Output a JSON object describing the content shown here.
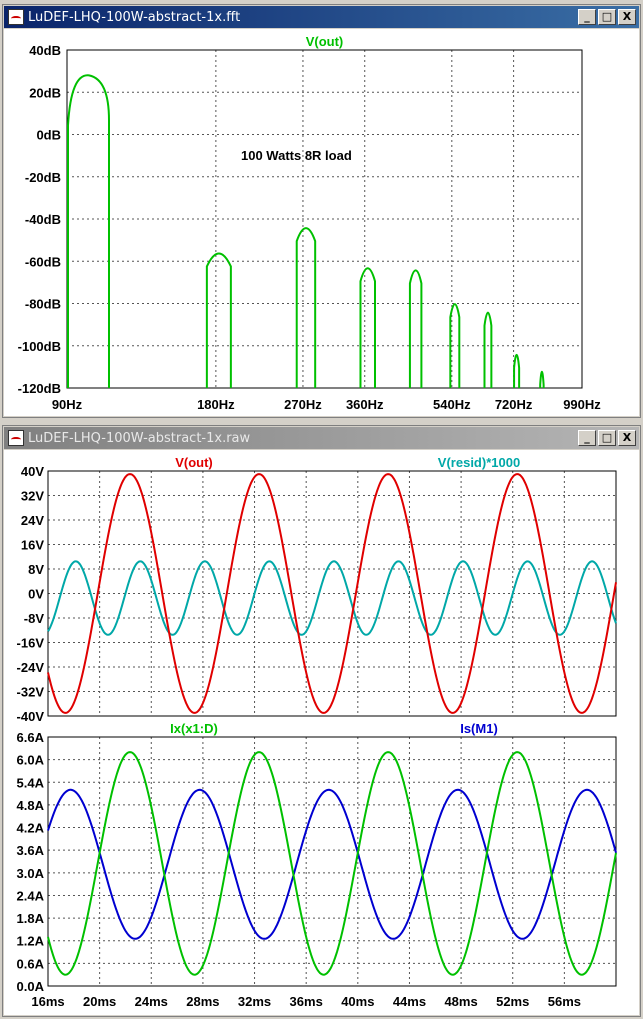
{
  "windows": {
    "fft": {
      "title": "LuDEF-LHQ-100W-abstract-1x.fft",
      "trace": "V(out)",
      "annotation": "100 Watts 8R load",
      "trace_color": "#00c000"
    },
    "raw": {
      "title": "LuDEF-LHQ-100W-abstract-1x.raw"
    },
    "window_buttons": {
      "minimize": "_",
      "maximize": "□",
      "close": "X"
    }
  },
  "chart_data": [
    {
      "type": "line",
      "title": "V(out)",
      "xscale": "log",
      "xlim": [
        90,
        990
      ],
      "x_ticks": [
        "90Hz",
        "180Hz",
        "270Hz",
        "360Hz",
        "540Hz",
        "720Hz",
        "990Hz"
      ],
      "ylim": [
        -120,
        40
      ],
      "y_ticks": [
        "40dB",
        "20dB",
        "0dB",
        "-20dB",
        "-40dB",
        "-60dB",
        "-80dB",
        "-100dB",
        "-120dB"
      ],
      "grid": true,
      "series": [
        {
          "name": "V(out)",
          "color": "#00c000",
          "peaks": [
            {
              "freq": 90,
              "db": 28
            },
            {
              "freq": 180,
              "db": -53
            },
            {
              "freq": 270,
              "db": -41
            },
            {
              "freq": 360,
              "db": -60
            },
            {
              "freq": 450,
              "db": -61
            },
            {
              "freq": 540,
              "db": -77
            },
            {
              "freq": 630,
              "db": -81
            },
            {
              "freq": 720,
              "db": -101
            },
            {
              "freq": 810,
              "db": -109
            }
          ]
        }
      ]
    },
    {
      "type": "line",
      "xlim": [
        16,
        60
      ],
      "ylim": [
        -40,
        40
      ],
      "y_ticks": [
        "40V",
        "32V",
        "24V",
        "16V",
        "8V",
        "0V",
        "-8V",
        "-16V",
        "-24V",
        "-32V",
        "-40V"
      ],
      "grid": true,
      "series": [
        {
          "name": "V(out)",
          "color": "#e00000",
          "amplitude": 39,
          "freq_hz": 100,
          "phase_deg": -117
        },
        {
          "name": "V(resid)*1000",
          "color": "#00a8a8",
          "amplitude": 12,
          "freq_hz": 200,
          "dc": -1.5
        }
      ]
    },
    {
      "type": "line",
      "xlim": [
        16,
        60
      ],
      "x_ticks": [
        "16ms",
        "20ms",
        "24ms",
        "28ms",
        "32ms",
        "36ms",
        "40ms",
        "44ms",
        "48ms",
        "52ms",
        "56ms"
      ],
      "ylim": [
        0,
        6.6
      ],
      "y_ticks": [
        "6.6A",
        "6.0A",
        "5.4A",
        "4.8A",
        "4.2A",
        "3.6A",
        "3.0A",
        "2.4A",
        "1.8A",
        "1.2A",
        "0.6A",
        "0.0A"
      ],
      "grid": true,
      "series": [
        {
          "name": "Ix(x1:D)",
          "color": "#00c000",
          "min": 0.3,
          "max": 6.2,
          "freq_hz": 100
        },
        {
          "name": "Is(M1)",
          "color": "#0000d0",
          "min": 1.25,
          "max": 5.2,
          "freq_hz": 100
        }
      ]
    }
  ]
}
